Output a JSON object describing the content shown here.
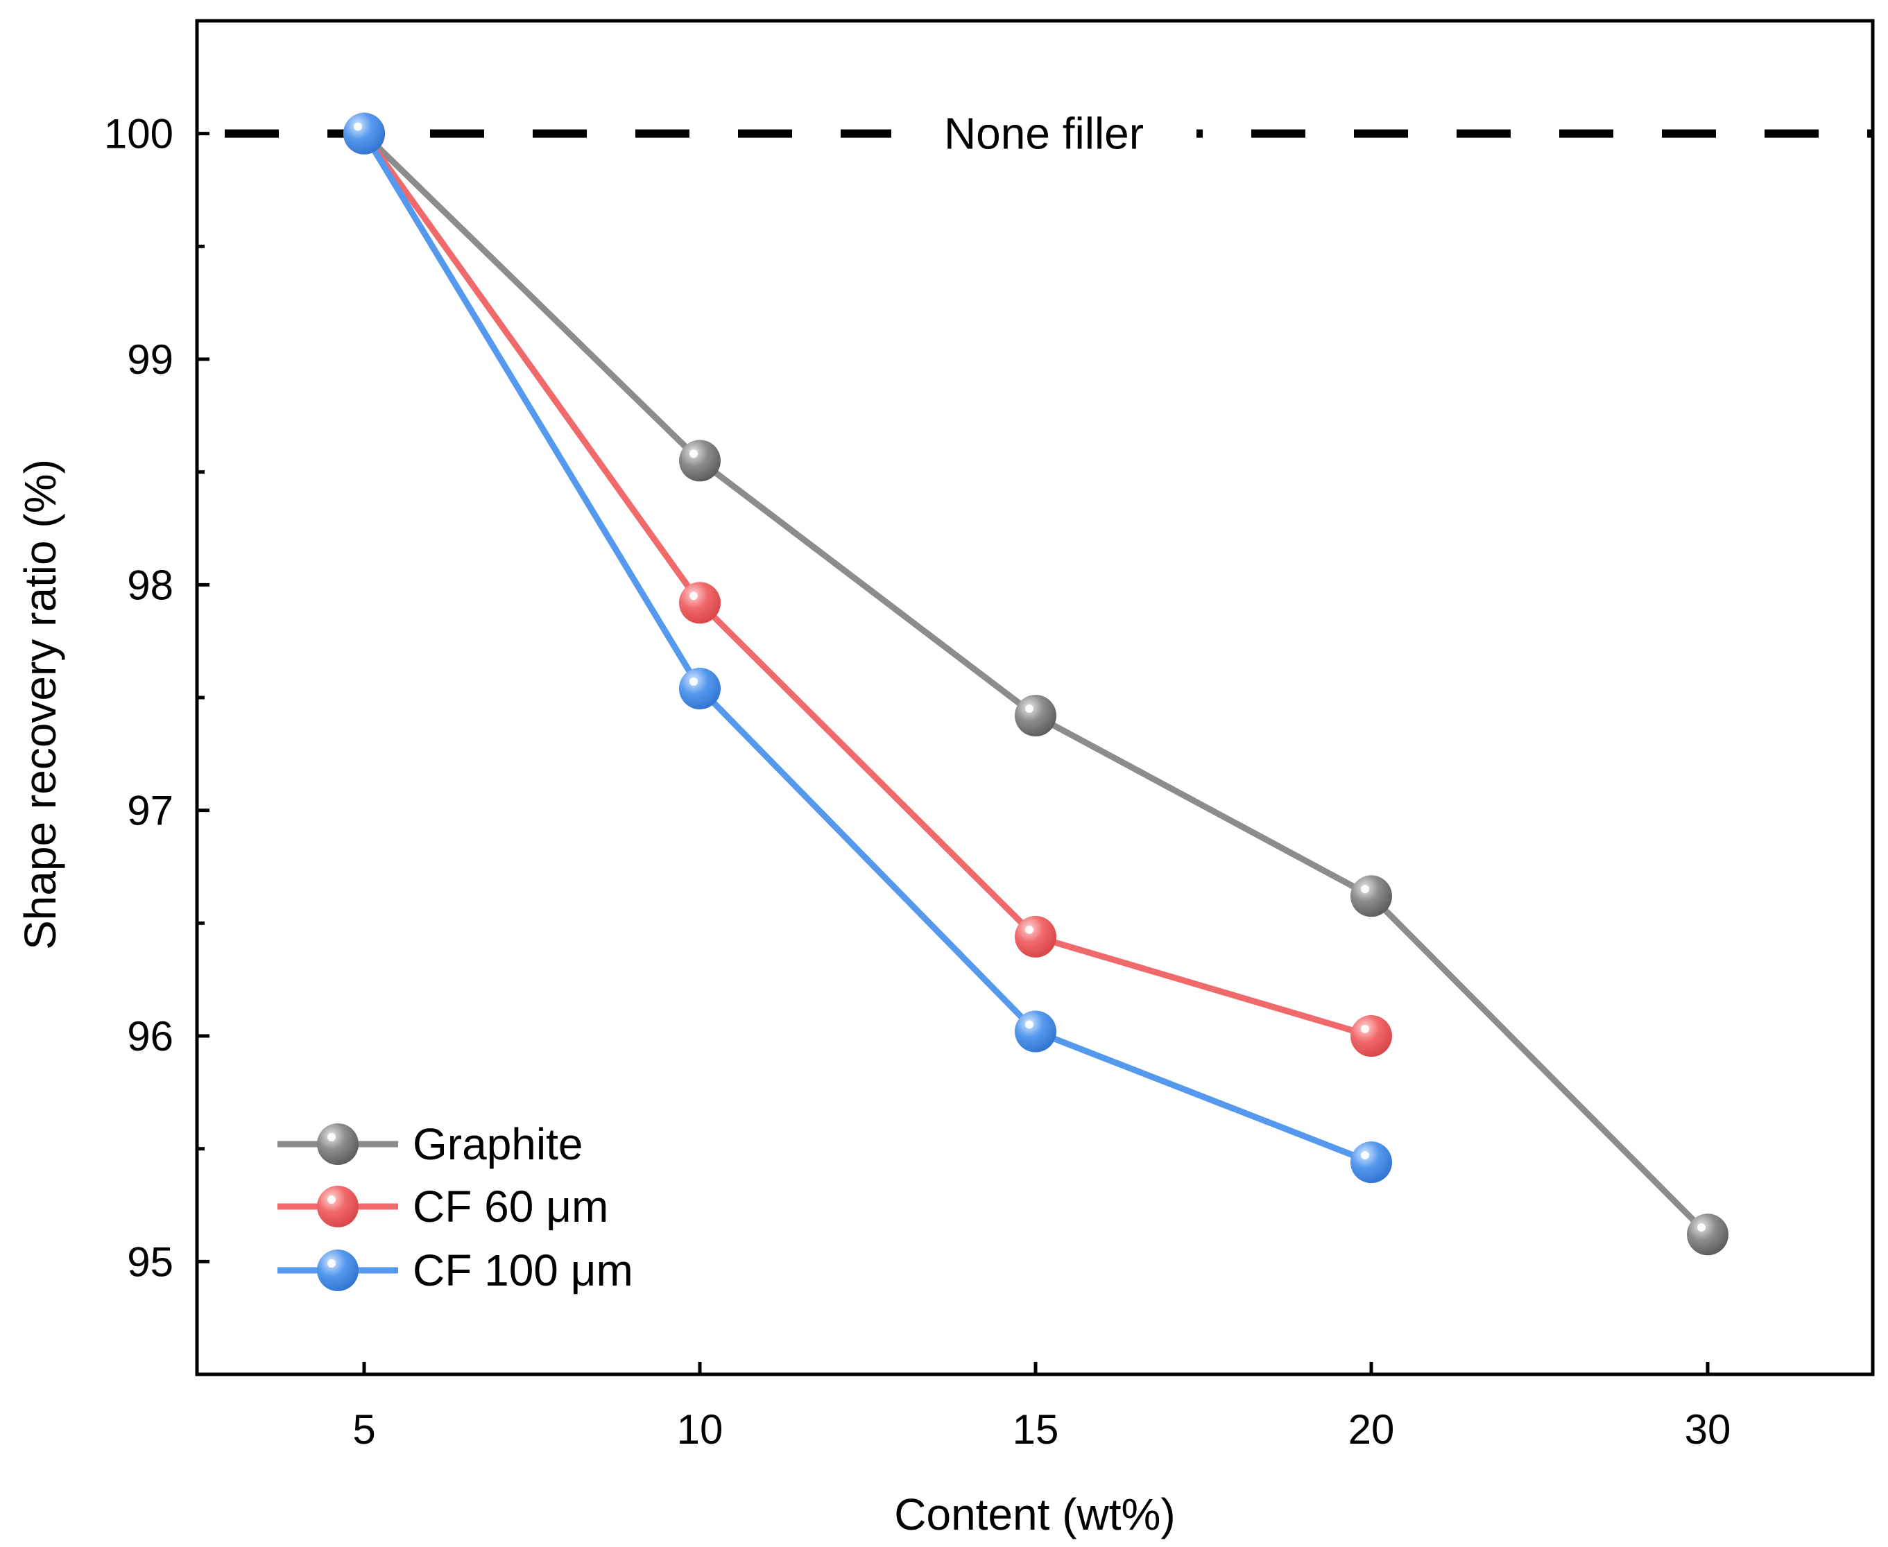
{
  "chart_data": {
    "type": "line",
    "title": "",
    "xlabel": "Content (wt%)",
    "ylabel": "Shape recovery ratio (%)",
    "categories": [
      "5",
      "10",
      "15",
      "20",
      "30"
    ],
    "ylim": [
      94.5,
      100.5
    ],
    "yticks": [
      "95",
      "96",
      "97",
      "98",
      "99",
      "100"
    ],
    "y_minor_step": 0.5,
    "grid": false,
    "legend_position": "bottom-left",
    "reference_line": {
      "label": "None filler",
      "value": 100,
      "color": "#000000",
      "style": "dashed"
    },
    "series": [
      {
        "name": "Graphite",
        "color": "#8c8c8c",
        "values": [
          100,
          98.55,
          97.42,
          96.62,
          95.12
        ]
      },
      {
        "name": "CF 60 μm",
        "color": "#f0696b",
        "values": [
          100,
          97.92,
          96.44,
          96.0,
          null
        ]
      },
      {
        "name": "CF 100 μm",
        "color": "#5599ee",
        "values": [
          100,
          97.54,
          96.02,
          95.44,
          null
        ]
      }
    ]
  }
}
